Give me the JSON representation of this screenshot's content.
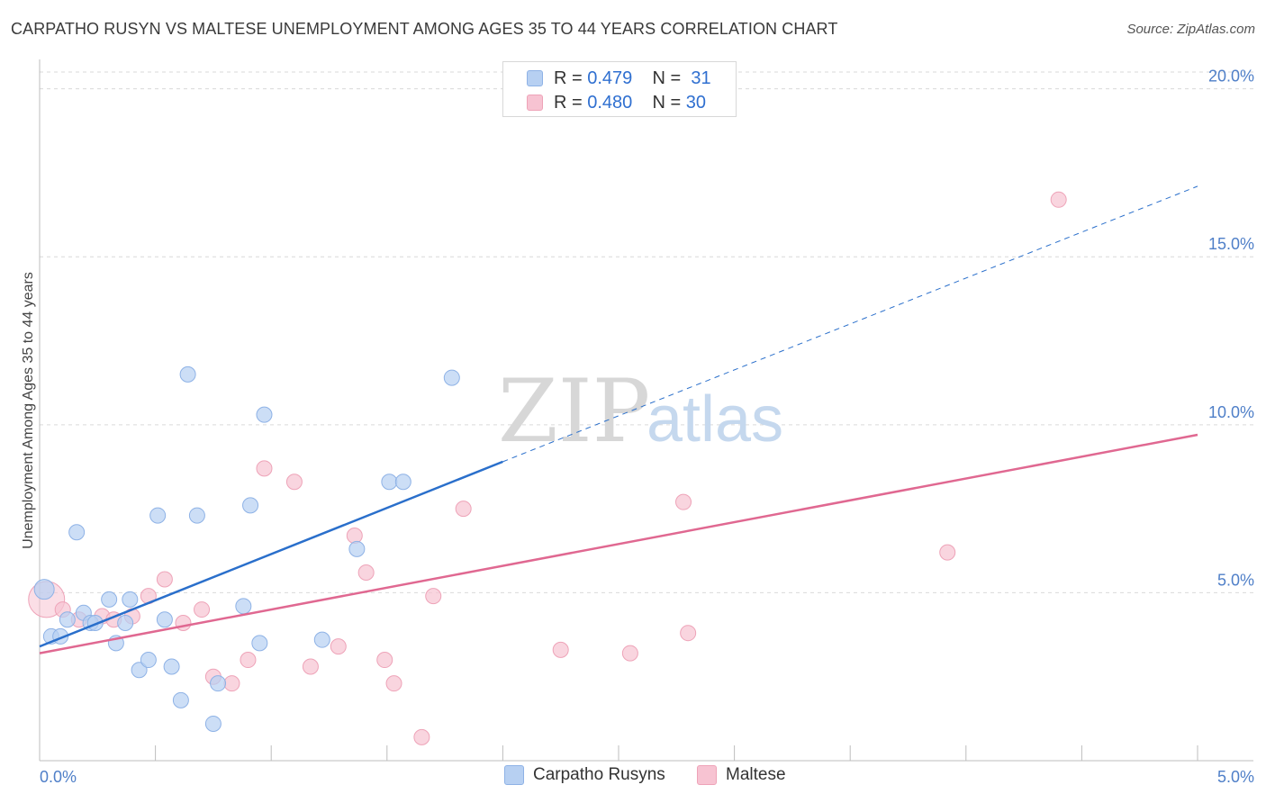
{
  "header": {
    "title": "CARPATHO RUSYN VS MALTESE UNEMPLOYMENT AMONG AGES 35 TO 44 YEARS CORRELATION CHART",
    "source": "Source: ZipAtlas.com"
  },
  "watermark": {
    "zip": "ZIP",
    "atlas": "atlas"
  },
  "colors": {
    "blue_fill": "#b7d0f2",
    "blue_stroke": "#8eb2e6",
    "blue_line": "#2a6fcb",
    "pink_fill": "#f7c3d2",
    "pink_stroke": "#eea3b8",
    "pink_line": "#e06891",
    "grid": "#d9d9d9",
    "tick_text": "#4f7fc8"
  },
  "legend": {
    "r_label": "R =",
    "n_label": "N =",
    "rows": [
      {
        "r": "0.479",
        "n": "31"
      },
      {
        "r": "0.480",
        "n": "30"
      }
    ]
  },
  "bottom_legend": [
    "Carpatho Rusyns",
    "Maltese"
  ],
  "chart_data": {
    "type": "scatter",
    "title": "CARPATHO RUSYN VS MALTESE UNEMPLOYMENT AMONG AGES 35 TO 44 YEARS CORRELATION CHART",
    "xlabel": "",
    "ylabel": "Unemployment Among Ages 35 to 44 years",
    "xlim": [
      0,
      5
    ],
    "ylim": [
      0,
      20.5
    ],
    "x_tick_labels": [
      "0.0%",
      "5.0%"
    ],
    "y_ticks": [
      5,
      10,
      15,
      20
    ],
    "y_tick_labels": [
      "5.0%",
      "10.0%",
      "15.0%",
      "20.0%"
    ],
    "grid": true,
    "series": [
      {
        "name": "Carpatho Rusyns",
        "r": 0.479,
        "n": 31,
        "points": [
          [
            0.02,
            5.1
          ],
          [
            0.05,
            3.7
          ],
          [
            0.09,
            3.7
          ],
          [
            0.12,
            4.2
          ],
          [
            0.16,
            6.8
          ],
          [
            0.19,
            4.4
          ],
          [
            0.22,
            4.1
          ],
          [
            0.24,
            4.1
          ],
          [
            0.3,
            4.8
          ],
          [
            0.33,
            3.5
          ],
          [
            0.37,
            4.1
          ],
          [
            0.39,
            4.8
          ],
          [
            0.43,
            2.7
          ],
          [
            0.47,
            3.0
          ],
          [
            0.51,
            7.3
          ],
          [
            0.54,
            4.2
          ],
          [
            0.57,
            2.8
          ],
          [
            0.61,
            1.8
          ],
          [
            0.64,
            11.5
          ],
          [
            0.68,
            7.3
          ],
          [
            0.75,
            1.1
          ],
          [
            0.77,
            2.3
          ],
          [
            0.88,
            4.6
          ],
          [
            0.91,
            7.6
          ],
          [
            0.95,
            3.5
          ],
          [
            0.97,
            10.3
          ],
          [
            1.22,
            3.6
          ],
          [
            1.37,
            6.3
          ],
          [
            1.51,
            8.3
          ],
          [
            1.57,
            8.3
          ],
          [
            1.78,
            11.4
          ]
        ],
        "trend": {
          "x0": 0.0,
          "y0": 3.4,
          "x1_solid": 2.0,
          "y1_solid": 8.9,
          "x1_dashed": 5.0,
          "y1_dashed": 17.1
        }
      },
      {
        "name": "Maltese",
        "r": 0.48,
        "n": 30,
        "points": [
          [
            0.03,
            4.8
          ],
          [
            0.1,
            4.5
          ],
          [
            0.17,
            4.2
          ],
          [
            0.27,
            4.3
          ],
          [
            0.32,
            4.2
          ],
          [
            0.4,
            4.3
          ],
          [
            0.47,
            4.9
          ],
          [
            0.54,
            5.4
          ],
          [
            0.62,
            4.1
          ],
          [
            0.7,
            4.5
          ],
          [
            0.75,
            2.5
          ],
          [
            0.83,
            2.3
          ],
          [
            0.9,
            3.0
          ],
          [
            0.97,
            8.7
          ],
          [
            1.1,
            8.3
          ],
          [
            1.17,
            2.8
          ],
          [
            1.29,
            3.4
          ],
          [
            1.36,
            6.7
          ],
          [
            1.41,
            5.6
          ],
          [
            1.49,
            3.0
          ],
          [
            1.53,
            2.3
          ],
          [
            1.65,
            0.7
          ],
          [
            1.7,
            4.9
          ],
          [
            1.83,
            7.5
          ],
          [
            2.25,
            3.3
          ],
          [
            2.55,
            3.2
          ],
          [
            2.78,
            7.7
          ],
          [
            2.8,
            3.8
          ],
          [
            3.92,
            6.2
          ],
          [
            4.4,
            16.7
          ]
        ],
        "trend": {
          "x0": 0.0,
          "y0": 3.2,
          "x1": 5.0,
          "y1": 9.7
        }
      }
    ]
  }
}
